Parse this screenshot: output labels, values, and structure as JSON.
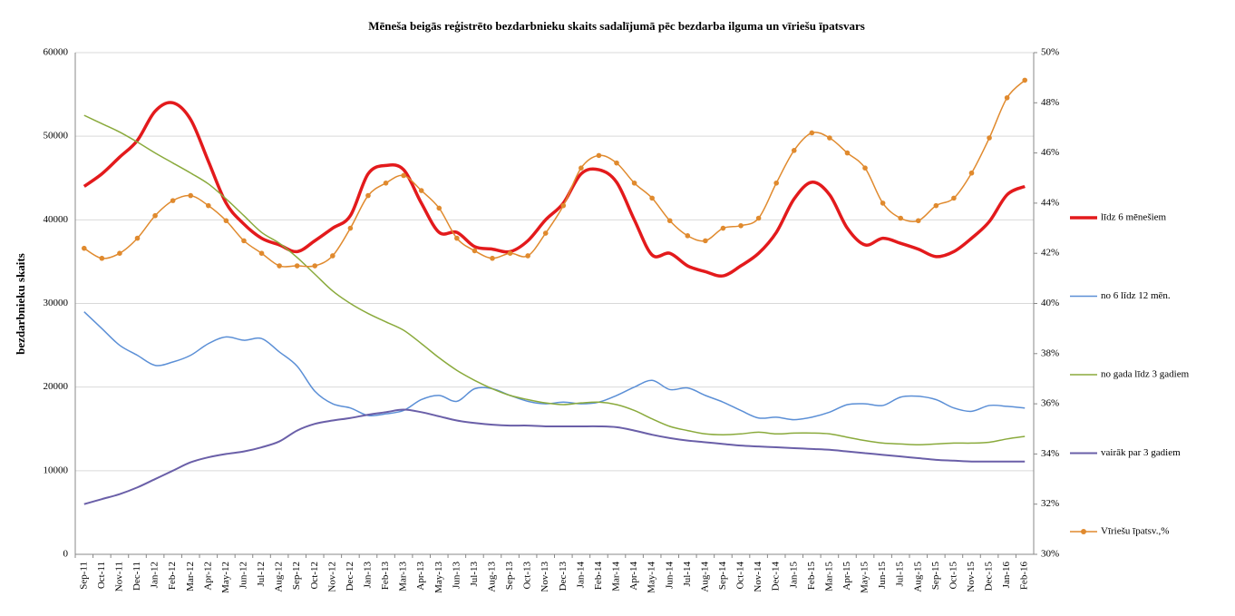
{
  "chart_data": {
    "type": "line",
    "title": "Mēneša beigās reģistrēto bezdarbnieku skaits sadalījumā pēc bezdarba ilguma un vīriešu īpatsvars",
    "y_label": "bezdarbnieku  skaits",
    "categories": [
      "Sep-11",
      "Oct-11",
      "Nov-11",
      "Dec-11",
      "Jan-12",
      "Feb-12",
      "Mar-12",
      "Apr-12",
      "May-12",
      "Jun-12",
      "Jul-12",
      "Aug-12",
      "Sep-12",
      "Oct-12",
      "Nov-12",
      "Dec-12",
      "Jan-13",
      "Feb-13",
      "Mar-13",
      "Apr-13",
      "May-13",
      "Jun-13",
      "Jul-13",
      "Aug-13",
      "Sep-13",
      "Oct-13",
      "Nov-13",
      "Dec-13",
      "Jan-14",
      "Feb-14",
      "Mar-14",
      "Apr-14",
      "May-14",
      "Jun-14",
      "Jul-14",
      "Aug-14",
      "Sep-14",
      "Oct-14",
      "Nov-14",
      "Dec-14",
      "Jan-15",
      "Feb-15",
      "Mar-15",
      "Apr-15",
      "May-15",
      "Jun-15",
      "Jul-15",
      "Aug-15",
      "Sep-15",
      "Oct-15",
      "Nov-15",
      "Dec-15",
      "Jan-16",
      "Feb-16"
    ],
    "series": [
      {
        "name": "līdz 6 mēnešiem",
        "color": "#e31a1c",
        "width": 3.5,
        "values": [
          44000,
          45500,
          47500,
          49500,
          53000,
          54000,
          52000,
          47000,
          42000,
          39500,
          37800,
          37000,
          36200,
          37500,
          39000,
          40500,
          45500,
          46500,
          46000,
          42000,
          38500,
          38500,
          36800,
          36500,
          36200,
          37500,
          40000,
          42000,
          45500,
          46000,
          44500,
          40000,
          35800,
          36000,
          34500,
          33800,
          33300,
          34500,
          36000,
          38500,
          42500,
          44500,
          43000,
          39000,
          37000,
          37800,
          37200,
          36500,
          35600,
          36200,
          37800,
          39800,
          43000,
          44000
        ]
      },
      {
        "name": "no 6 līdz 12 mēn.",
        "color": "#5b8fd6",
        "width": 1.5,
        "values": [
          29000,
          27000,
          25000,
          23800,
          22600,
          23000,
          23800,
          25200,
          26000,
          25600,
          25800,
          24200,
          22500,
          19500,
          18000,
          17500,
          16600,
          16800,
          17200,
          18500,
          19000,
          18300,
          19800,
          19800,
          19000,
          18300,
          18000,
          18200,
          18000,
          18200,
          19000,
          20000,
          20800,
          19700,
          19900,
          19000,
          18200,
          17200,
          16300,
          16400,
          16100,
          16400,
          17000,
          17900,
          18000,
          17800,
          18800,
          18900,
          18500,
          17500,
          17100,
          17800,
          17700,
          17500
        ]
      },
      {
        "name": "no gada līdz 3 gadiem",
        "color": "#8aaa3c",
        "width": 1.5,
        "values": [
          52500,
          51500,
          50500,
          49300,
          48000,
          46800,
          45600,
          44300,
          42500,
          40500,
          38500,
          37200,
          35500,
          33500,
          31500,
          30000,
          28800,
          27800,
          26800,
          25200,
          23500,
          22000,
          20800,
          19800,
          19000,
          18500,
          18100,
          17900,
          18100,
          18200,
          17900,
          17200,
          16200,
          15300,
          14800,
          14400,
          14300,
          14400,
          14600,
          14400,
          14500,
          14500,
          14400,
          14000,
          13600,
          13300,
          13200,
          13100,
          13200,
          13300,
          13300,
          13400,
          13800,
          14100
        ]
      },
      {
        "name": "vairāk par 3 gadiem",
        "color": "#6a5fa8",
        "width": 2,
        "values": [
          6000,
          6600,
          7200,
          8000,
          9000,
          10000,
          11000,
          11600,
          12000,
          12300,
          12800,
          13500,
          14800,
          15600,
          16000,
          16300,
          16700,
          17000,
          17300,
          17000,
          16500,
          16000,
          15700,
          15500,
          15400,
          15400,
          15300,
          15300,
          15300,
          15300,
          15200,
          14800,
          14300,
          13900,
          13600,
          13400,
          13200,
          13000,
          12900,
          12800,
          12700,
          12600,
          12500,
          12300,
          12100,
          11900,
          11700,
          11500,
          11300,
          11200,
          11100,
          11100,
          11100,
          11100
        ]
      },
      {
        "name": "Vīriešu īpatsv.,%",
        "color": "#e08a2e",
        "width": 1.5,
        "axis": "y2",
        "markers": true,
        "values": [
          42.2,
          41.8,
          42.0,
          42.6,
          43.5,
          44.1,
          44.3,
          43.9,
          43.3,
          42.5,
          42.0,
          41.5,
          41.5,
          41.5,
          41.9,
          43.0,
          44.3,
          44.8,
          45.1,
          44.5,
          43.8,
          42.6,
          42.1,
          41.8,
          42.0,
          41.9,
          42.8,
          43.9,
          45.4,
          45.9,
          45.6,
          44.8,
          44.2,
          43.3,
          42.7,
          42.5,
          43.0,
          43.1,
          43.4,
          44.8,
          46.1,
          46.8,
          46.6,
          46.0,
          45.4,
          44.0,
          43.4,
          43.3,
          43.9,
          44.2,
          45.2,
          46.6,
          48.2,
          48.9
        ]
      }
    ],
    "ylim": [
      0,
      60000
    ],
    "yticks": [
      0,
      10000,
      20000,
      30000,
      40000,
      50000,
      60000
    ],
    "y2lim": [
      30,
      50
    ],
    "y2ticks": [
      {
        "value": 30,
        "label": "30%"
      },
      {
        "value": 32,
        "label": "32%"
      },
      {
        "value": 34,
        "label": "34%"
      },
      {
        "value": 36,
        "label": "36%"
      },
      {
        "value": 38,
        "label": "38%"
      },
      {
        "value": 40,
        "label": "40%"
      },
      {
        "value": 42,
        "label": "42%"
      },
      {
        "value": 44,
        "label": "44%"
      },
      {
        "value": 46,
        "label": "46%"
      },
      {
        "value": 48,
        "label": "48%"
      },
      {
        "value": 50,
        "label": "50%"
      }
    ],
    "grid": true,
    "legend": "right"
  }
}
